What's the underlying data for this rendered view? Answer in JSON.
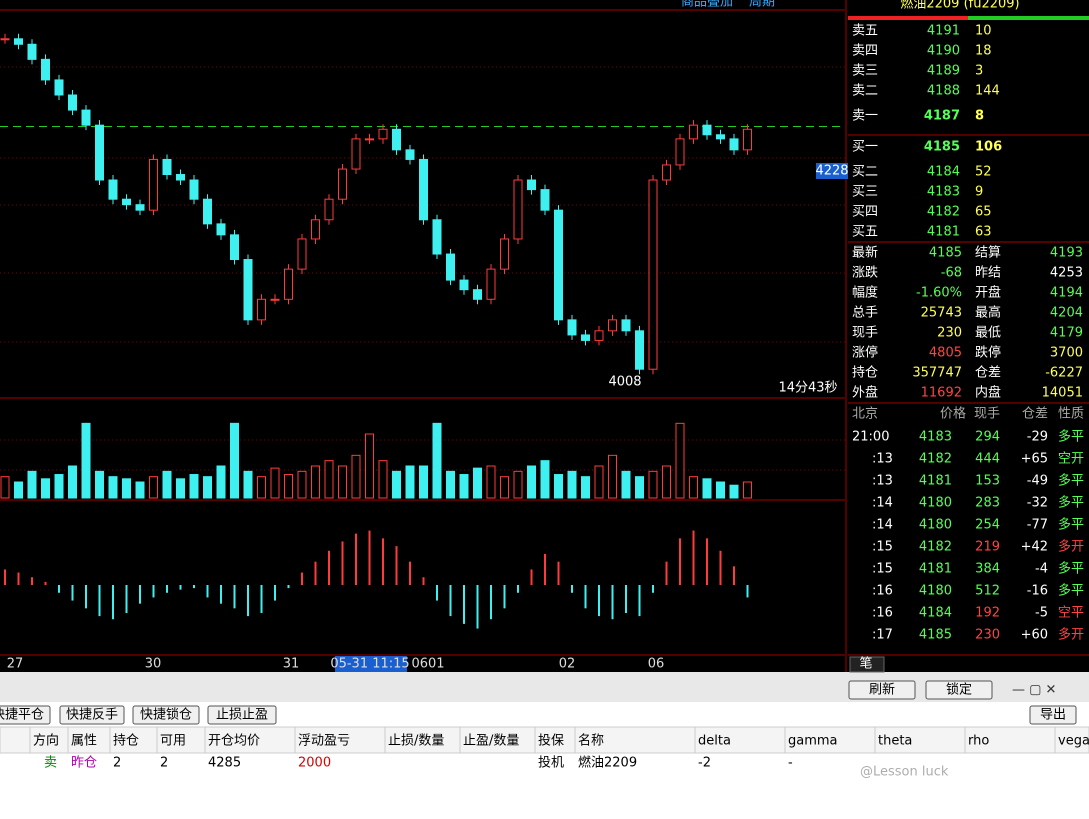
{
  "header": {
    "title": "燃油2209 (fu2209)",
    "links": [
      "商品叠加",
      "周期"
    ]
  },
  "chart_data": {
    "type": "candlestick",
    "closes": [
      4251,
      4247,
      4236,
      4221,
      4210,
      4199,
      4188,
      4148,
      4134,
      4130,
      4126,
      4163,
      4152,
      4148,
      4134,
      4116,
      4108,
      4090,
      4046,
      4061,
      4061,
      4083,
      4105,
      4119,
      4134,
      4156,
      4178,
      4178,
      4185,
      4170,
      4163,
      4119,
      4094,
      4075,
      4068,
      4061,
      4083,
      4105,
      4148,
      4141,
      4126,
      4046,
      4035,
      4031,
      4038,
      4046,
      4038,
      4010,
      4148,
      4159,
      4178,
      4188,
      4181,
      4178,
      4170,
      4185
    ],
    "ylim": [
      3989,
      4272
    ],
    "level_line": 4187,
    "volume": [
      20,
      15,
      25,
      18,
      22,
      30,
      70,
      25,
      20,
      18,
      15,
      20,
      25,
      18,
      22,
      20,
      30,
      70,
      25,
      20,
      28,
      22,
      25,
      30,
      35,
      30,
      40,
      60,
      35,
      25,
      30,
      30,
      70,
      25,
      22,
      28,
      30,
      20,
      25,
      30,
      35,
      22,
      25,
      20,
      30,
      40,
      25,
      20,
      25,
      30,
      70,
      20,
      18,
      15,
      12,
      15
    ],
    "volume_ylim": [
      0,
      75
    ],
    "macd": [
      10,
      8,
      5,
      2,
      -5,
      -10,
      -15,
      -20,
      -22,
      -18,
      -12,
      -8,
      -5,
      -3,
      -2,
      -8,
      -12,
      -15,
      -20,
      -18,
      -10,
      -2,
      8,
      15,
      22,
      28,
      33,
      35,
      30,
      25,
      15,
      5,
      -10,
      -20,
      -25,
      -28,
      -22,
      -15,
      -5,
      10,
      20,
      15,
      -5,
      -15,
      -20,
      -22,
      -18,
      -20,
      -5,
      15,
      30,
      35,
      30,
      22,
      12,
      -8
    ],
    "macd_ylim": [
      -45,
      45
    ],
    "up_color": "#ff3b3b",
    "down_color": "#3ff0f0",
    "x_labels": [
      "27",
      "30",
      "31",
      "05-31 11:15",
      "0601",
      "02",
      "06"
    ],
    "low_label": "4008",
    "timer": "14分43秒",
    "cursor_price": "4228"
  },
  "asks": [
    {
      "label": "卖五",
      "price": 4191,
      "vol": 10
    },
    {
      "label": "卖四",
      "price": 4190,
      "vol": 18
    },
    {
      "label": "卖三",
      "price": 4189,
      "vol": 3
    },
    {
      "label": "卖二",
      "price": 4188,
      "vol": 144
    },
    {
      "label": "卖一",
      "price": 4187,
      "vol": 8
    }
  ],
  "bids": [
    {
      "label": "买一",
      "price": 4185,
      "vol": 106
    },
    {
      "label": "买二",
      "price": 4184,
      "vol": 52
    },
    {
      "label": "买三",
      "price": 4183,
      "vol": 9
    },
    {
      "label": "买四",
      "price": 4182,
      "vol": 65
    },
    {
      "label": "买五",
      "price": 4181,
      "vol": 63
    }
  ],
  "stats": [
    [
      {
        "label": "最新",
        "value": 4185,
        "color": "#5f5"
      },
      {
        "label": "结算",
        "value": 4193,
        "color": "#5f5"
      }
    ],
    [
      {
        "label": "涨跌",
        "value": -68,
        "color": "#5f5"
      },
      {
        "label": "昨结",
        "value": 4253,
        "color": "#fff"
      }
    ],
    [
      {
        "label": "幅度",
        "value": "-1.60%",
        "color": "#5f5"
      },
      {
        "label": "开盘",
        "value": 4194,
        "color": "#5f5"
      }
    ],
    [
      {
        "label": "总手",
        "value": 25743,
        "color": "#ff5"
      },
      {
        "label": "最高",
        "value": 4204,
        "color": "#5f5"
      }
    ],
    [
      {
        "label": "现手",
        "value": 230,
        "color": "#ff5"
      },
      {
        "label": "最低",
        "value": 4179,
        "color": "#5f5"
      }
    ],
    [
      {
        "label": "涨停",
        "value": 4805,
        "color": "#f44"
      },
      {
        "label": "跌停",
        "value": 3700,
        "color": "#ff5"
      }
    ],
    [
      {
        "label": "持仓",
        "value": 357747,
        "color": "#ff5"
      },
      {
        "label": "仓差",
        "value": -6227,
        "color": "#ff5"
      }
    ],
    [
      {
        "label": "外盘",
        "value": 11692,
        "color": "#f44"
      },
      {
        "label": "内盘",
        "value": 14051,
        "color": "#ff5"
      }
    ]
  ],
  "tick_headers": [
    "北京",
    "价格",
    "现手",
    "仓差",
    "性质"
  ],
  "ticks": [
    [
      "21:00",
      4183,
      294,
      -29,
      "多平",
      "#5f5"
    ],
    [
      ":13",
      4182,
      444,
      "+65",
      "空开",
      "#5f5"
    ],
    [
      ":13",
      4181,
      153,
      -49,
      "多平",
      "#5f5"
    ],
    [
      ":14",
      4180,
      283,
      -32,
      "多平",
      "#5f5"
    ],
    [
      ":14",
      4180,
      254,
      -77,
      "多平",
      "#5f5"
    ],
    [
      ":15",
      4182,
      219,
      "+42",
      "多开",
      "#f44"
    ],
    [
      ":15",
      4181,
      384,
      -4,
      "多平",
      "#5f5"
    ],
    [
      ":16",
      4180,
      512,
      -16,
      "多平",
      "#5f5"
    ],
    [
      ":16",
      4184,
      192,
      -5,
      "空平",
      "#f44"
    ],
    [
      ":17",
      4185,
      230,
      "+60",
      "多开",
      "#f44"
    ]
  ],
  "tab": "笔",
  "toolbar": {
    "refresh": "刷新",
    "lock": "锁定",
    "export": "导出",
    "quick": [
      "快捷平仓",
      "快捷反手",
      "快捷锁仓",
      "止损止盈"
    ]
  },
  "table": {
    "headers": [
      "方向",
      "属性",
      "持仓",
      "可用",
      "开仓均价",
      "浮动盈亏",
      "止损/数量",
      "止盈/数量",
      "投保",
      "名称",
      "delta",
      "gamma",
      "theta",
      "rho",
      "vega"
    ],
    "rows": [
      [
        "卖",
        "昨仓",
        2,
        2,
        4285,
        2000,
        null,
        null,
        "投机",
        "燃油2209",
        -2,
        "-",
        null,
        null,
        null
      ]
    ]
  },
  "watermark": "@Lesson luck"
}
